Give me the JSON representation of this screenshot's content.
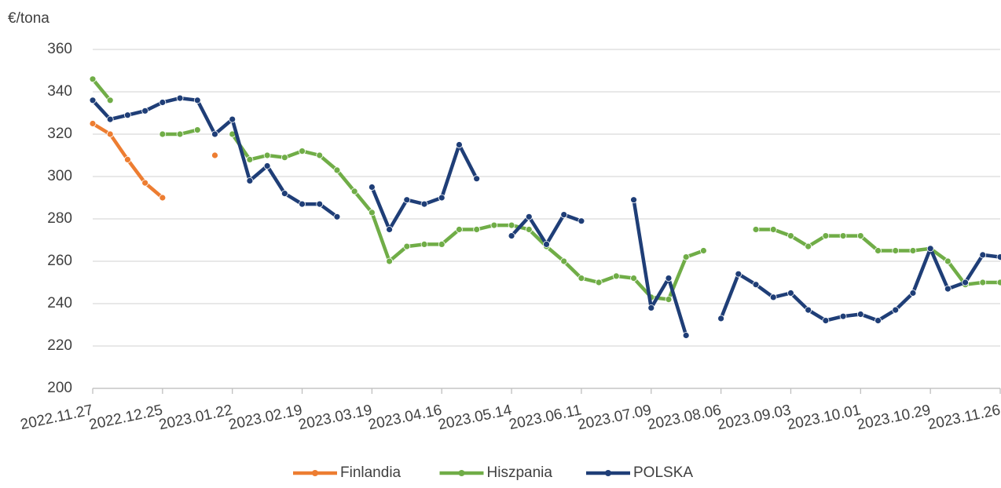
{
  "chart_data": {
    "type": "line",
    "ylabel": "€/tona",
    "categories": [
      "2022.11.27",
      null,
      null,
      null,
      "2022.12.25",
      null,
      null,
      null,
      "2023.01.22",
      null,
      null,
      null,
      "2023.02.19",
      null,
      null,
      null,
      "2023.03.19",
      null,
      null,
      null,
      "2023.04.16",
      null,
      null,
      null,
      "2023.05.14",
      null,
      null,
      null,
      "2023.06.11",
      null,
      null,
      null,
      "2023.07.09",
      null,
      null,
      null,
      "2023.08.06",
      null,
      null,
      null,
      "2023.09.03",
      null,
      null,
      null,
      "2023.10.01",
      null,
      null,
      null,
      "2023.10.29",
      null,
      null,
      null,
      "2023.11.26"
    ],
    "series": [
      {
        "name": "Finlandia",
        "color": "#ed7d31",
        "values": [
          325,
          320,
          308,
          297,
          290,
          null,
          null,
          310,
          null,
          null,
          null,
          null,
          null,
          null,
          null,
          null,
          null,
          null,
          null,
          null,
          null,
          null,
          null,
          null,
          null,
          null,
          null,
          null,
          null,
          null,
          null,
          null,
          null,
          null,
          null,
          null,
          null,
          null,
          null,
          null,
          null,
          null,
          null,
          null,
          null,
          null,
          null,
          null,
          null,
          null,
          null,
          null,
          null
        ]
      },
      {
        "name": "Hiszpania",
        "color": "#70ad47",
        "values": [
          346,
          336,
          null,
          null,
          320,
          320,
          322,
          null,
          320,
          308,
          310,
          309,
          312,
          310,
          303,
          293,
          283,
          260,
          267,
          268,
          268,
          275,
          275,
          277,
          277,
          275,
          267,
          260,
          252,
          250,
          253,
          252,
          243,
          242,
          262,
          265,
          null,
          null,
          275,
          275,
          272,
          267,
          272,
          272,
          272,
          265,
          265,
          265,
          266,
          260,
          249,
          250,
          250
        ]
      },
      {
        "name": "POLSKA",
        "color": "#1f3e77",
        "values": [
          336,
          327,
          329,
          331,
          335,
          337,
          336,
          320,
          327,
          298,
          305,
          292,
          287,
          287,
          281,
          null,
          295,
          275,
          289,
          287,
          290,
          315,
          299,
          null,
          272,
          281,
          268,
          282,
          279,
          null,
          null,
          289,
          238,
          252,
          225,
          null,
          233,
          254,
          249,
          243,
          245,
          237,
          232,
          234,
          235,
          232,
          237,
          245,
          266,
          247,
          250,
          263,
          262
        ]
      }
    ],
    "ylim": [
      200,
      360
    ],
    "yticks": [
      200,
      220,
      240,
      260,
      280,
      300,
      320,
      340,
      360
    ],
    "grid": true,
    "legend": "bottom"
  }
}
